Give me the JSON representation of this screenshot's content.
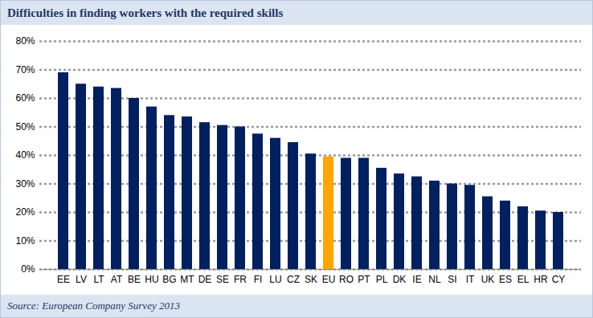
{
  "chart_data": {
    "type": "bar",
    "title": "Difficulties in finding workers with the required skills",
    "caption": "Source: European Company Survey 2013",
    "categories": [
      "EE",
      "LV",
      "LT",
      "AT",
      "BE",
      "HU",
      "BG",
      "MT",
      "DE",
      "SE",
      "FR",
      "FI",
      "LU",
      "CZ",
      "SK",
      "EU",
      "RO",
      "PT",
      "PL",
      "DK",
      "IE",
      "NL",
      "SI",
      "IT",
      "UK",
      "ES",
      "EL",
      "HR",
      "CY"
    ],
    "values": [
      69,
      65,
      64,
      63.5,
      60,
      57,
      54,
      53.5,
      51.5,
      50.5,
      50,
      47.5,
      46,
      44.5,
      40.5,
      39.5,
      39,
      39,
      35.5,
      33.5,
      32.5,
      31,
      30,
      29.5,
      25.5,
      24,
      22,
      20.5,
      20
    ],
    "colors": [
      "#002060",
      "#002060",
      "#002060",
      "#002060",
      "#002060",
      "#002060",
      "#002060",
      "#002060",
      "#002060",
      "#002060",
      "#002060",
      "#002060",
      "#002060",
      "#002060",
      "#002060",
      "#ffa500",
      "#002060",
      "#002060",
      "#002060",
      "#002060",
      "#002060",
      "#002060",
      "#002060",
      "#002060",
      "#002060",
      "#002060",
      "#002060",
      "#002060",
      "#002060"
    ],
    "ylim": [
      0,
      80
    ],
    "yticks": [
      {
        "value": 0,
        "label": "0%"
      },
      {
        "value": 10,
        "label": "10%"
      },
      {
        "value": 20,
        "label": "20%"
      },
      {
        "value": 30,
        "label": "30%"
      },
      {
        "value": 40,
        "label": "40%"
      },
      {
        "value": 50,
        "label": "50%"
      },
      {
        "value": 60,
        "label": "60%"
      },
      {
        "value": 70,
        "label": "70%"
      },
      {
        "value": 80,
        "label": "80%"
      }
    ],
    "grid": true
  }
}
